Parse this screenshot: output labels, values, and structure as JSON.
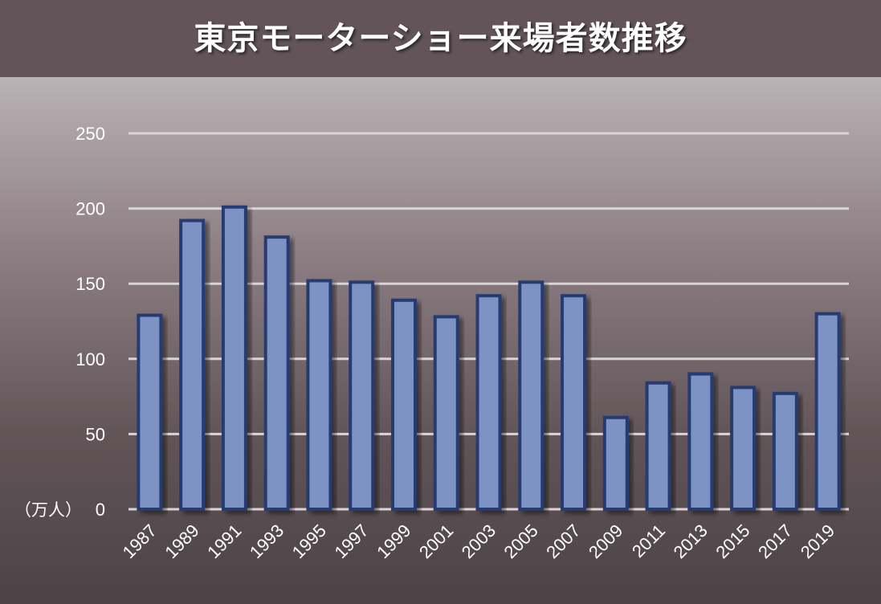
{
  "chart_data": {
    "type": "bar",
    "title": "東京モーターショー来場者数推移",
    "unit_label": "（万人）",
    "categories": [
      "1987",
      "1989",
      "1991",
      "1993",
      "1995",
      "1997",
      "1999",
      "2001",
      "2003",
      "2005",
      "2007",
      "2009",
      "2011",
      "2013",
      "2015",
      "2017",
      "2019"
    ],
    "values": [
      129,
      192,
      201,
      181,
      152,
      151,
      139,
      128,
      142,
      151,
      142,
      61,
      84,
      90,
      81,
      77,
      130
    ],
    "ylim": [
      0,
      250
    ],
    "yticks": [
      0,
      50,
      100,
      150,
      200,
      250
    ],
    "grid": true,
    "colors": {
      "bar_fill": "#7b93c4",
      "bar_stroke": "#283a72",
      "grid": "#d9d4d6",
      "title_bg": "#625458"
    }
  }
}
